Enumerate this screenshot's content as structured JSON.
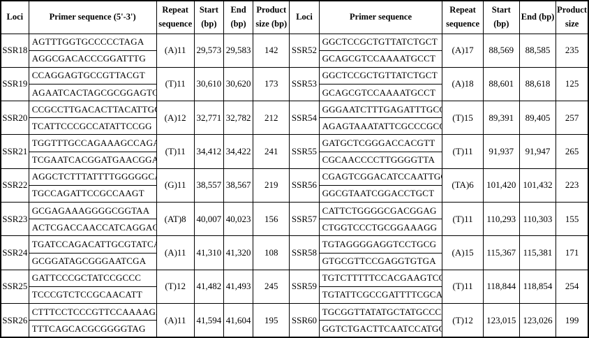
{
  "headers": {
    "left": [
      "Loci",
      "Primer sequence (5'-3')",
      "Repeat sequence",
      "Start (bp)",
      "End (bp)",
      "Product size (bp)"
    ],
    "right": [
      "Loci",
      "Primer sequence",
      "Repeat sequence",
      "Start (bp)",
      "End (bp)",
      "Product size"
    ]
  },
  "rows": [
    {
      "left": {
        "loci": "SSR18",
        "primers": [
          "AGTTTGGTGCCCCCTAGA",
          "AGGCGACACCCGGATTTG"
        ],
        "repeat": "(A)11",
        "start": "29,573",
        "end": "29,583",
        "product": "142"
      },
      "right": {
        "loci": "SSR52",
        "primers": [
          "GGCTCCGCTGTTATCTGCT",
          "GCAGCGTCCAAAATGCCT"
        ],
        "repeat": "(A)17",
        "start": "88,569",
        "end": "88,585",
        "product": "235"
      }
    },
    {
      "left": {
        "loci": "SSR19",
        "primers": [
          "CCAGGAGTGCCGTTACGT",
          "AGAATCACTAGCGCGGAGTC"
        ],
        "repeat": "(T)11",
        "start": "30,610",
        "end": "30,620",
        "product": "173"
      },
      "right": {
        "loci": "SSR53",
        "primers": [
          "GGCTCCGCTGTTATCTGCT",
          "GCAGCGTCCAAAATGCCT"
        ],
        "repeat": "(A)18",
        "start": "88,601",
        "end": "88,618",
        "product": "125"
      }
    },
    {
      "left": {
        "loci": "SSR20",
        "primers": [
          "CCGCCTTGACACTTACATTGG",
          "TCATTCCCGCCATATTCCGG"
        ],
        "repeat": "(A)12",
        "start": "32,771",
        "end": "32,782",
        "product": "212"
      },
      "right": {
        "loci": "SSR54",
        "primers": [
          "GGGAATCTTTGAGATTTGCCC",
          "AGAGTAAATATTCGCCCGCG"
        ],
        "repeat": "(T)15",
        "start": "89,391",
        "end": "89,405",
        "product": "257"
      }
    },
    {
      "left": {
        "loci": "SSR21",
        "primers": [
          "TGGTTTGCCAGAAAGCCAGA",
          "TCGAATCACGGATGAACGGA"
        ],
        "repeat": "(T)11",
        "start": "34,412",
        "end": "34,422",
        "product": "241"
      },
      "right": {
        "loci": "SSR55",
        "primers": [
          "GATGCTCGGGACCACGTT",
          "CGCAACCCCTTGGGGTTA"
        ],
        "repeat": "(T)11",
        "start": "91,937",
        "end": "91,947",
        "product": "265"
      }
    },
    {
      "left": {
        "loci": "SSR22",
        "primers": [
          "AGGCTCTTTATTTTGGGGGCA",
          "TGCCAGATTCCGCCAAGT"
        ],
        "repeat": "(G)11",
        "start": "38,557",
        "end": "38,567",
        "product": "219"
      },
      "right": {
        "loci": "SSR56",
        "primers": [
          "CGAGTCGGACATCCAATTGC",
          "GGCGTAATCGGACCTGCT"
        ],
        "repeat": "(TA)6",
        "start": "101,420",
        "end": "101,432",
        "product": "223"
      }
    },
    {
      "left": {
        "loci": "SSR23",
        "primers": [
          "GCGAGAAAGGGGCGGTAA",
          "ACTCGACCAACCATCAGGAG"
        ],
        "repeat": "(AT)8",
        "start": "40,007",
        "end": "40,023",
        "product": "156"
      },
      "right": {
        "loci": "SSR57",
        "primers": [
          "CATTCTGGGGCGACGGAG",
          "CTGGTCCCTGCGGAAAGG"
        ],
        "repeat": "(T)11",
        "start": "110,293",
        "end": "110,303",
        "product": "155"
      }
    },
    {
      "left": {
        "loci": "SSR24",
        "primers": [
          "TGATCCAGACATTGCGTATCA",
          "GCGGATAGCGGGAATCGA"
        ],
        "repeat": "(A)11",
        "start": "41,310",
        "end": "41,320",
        "product": "108"
      },
      "right": {
        "loci": "SSR58",
        "primers": [
          "TGTAGGGGAGGTCCTGCG",
          "GTGCGTTCCGAGGTGTGA"
        ],
        "repeat": "(A)15",
        "start": "115,367",
        "end": "115,381",
        "product": "171"
      }
    },
    {
      "left": {
        "loci": "SSR25",
        "primers": [
          "GATTCCCGCTATCCGCCC",
          "TCCCGTCTCCGCAACATT"
        ],
        "repeat": "(T)12",
        "start": "41,482",
        "end": "41,493",
        "product": "245"
      },
      "right": {
        "loci": "SSR59",
        "primers": [
          "TGTCTTTTTCCACGAAGTCCT",
          "TGTATTCGCCGATTTTCGCA"
        ],
        "repeat": "(T)11",
        "start": "118,844",
        "end": "118,854",
        "product": "254"
      }
    },
    {
      "left": {
        "loci": "SSR26",
        "primers": [
          "CTTTCCTCCCGTTCCAAAAGA",
          "TTTCAGCACGCGGGGTAG"
        ],
        "repeat": "(A)11",
        "start": "41,594",
        "end": "41,604",
        "product": "195"
      },
      "right": {
        "loci": "SSR60",
        "primers": [
          "TGCGGTTATATGCTATGCCCA",
          "GGTCTGACTTCAATCCATGGA"
        ],
        "repeat": "(T)12",
        "start": "123,015",
        "end": "123,026",
        "product": "199"
      }
    }
  ],
  "colors": {
    "border": "#000000",
    "text": "#000000",
    "background": "#ffffff"
  }
}
